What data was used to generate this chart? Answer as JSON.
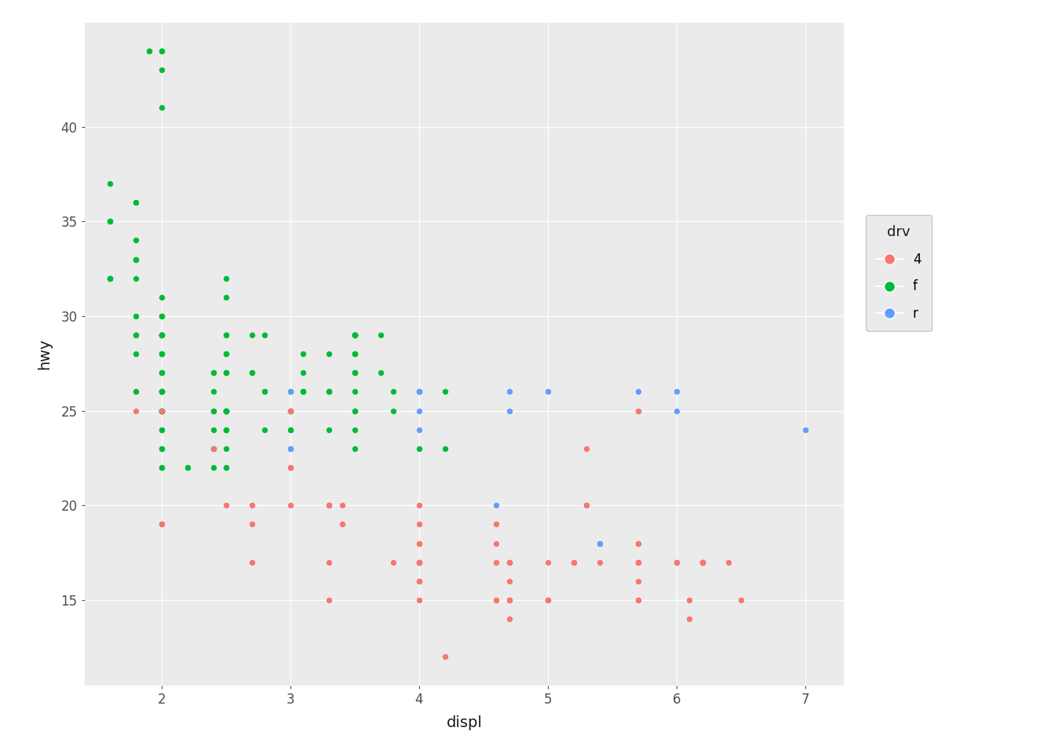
{
  "title": "",
  "xlabel": "displ",
  "ylabel": "hwy",
  "legend_title": "drv",
  "xlim": [
    1.4,
    7.3
  ],
  "ylim": [
    10.5,
    45.5
  ],
  "yticks": [
    15,
    20,
    25,
    30,
    35,
    40
  ],
  "xticks": [
    2,
    3,
    4,
    5,
    6,
    7
  ],
  "background_color": "#EBEBEB",
  "grid_color": "#FFFFFF",
  "colors": {
    "4": "#F8766D",
    "f": "#00BA38",
    "r": "#619CFF"
  },
  "legend_bg": "#EBEBEB",
  "data": [
    {
      "displ": 1.8,
      "hwy": 29,
      "drv": "f"
    },
    {
      "displ": 1.8,
      "hwy": 29,
      "drv": "f"
    },
    {
      "displ": 2.0,
      "hwy": 31,
      "drv": "f"
    },
    {
      "displ": 2.0,
      "hwy": 30,
      "drv": "f"
    },
    {
      "displ": 2.8,
      "hwy": 26,
      "drv": "f"
    },
    {
      "displ": 2.8,
      "hwy": 26,
      "drv": "f"
    },
    {
      "displ": 3.1,
      "hwy": 27,
      "drv": "f"
    },
    {
      "displ": 1.8,
      "hwy": 26,
      "drv": "4"
    },
    {
      "displ": 1.8,
      "hwy": 25,
      "drv": "4"
    },
    {
      "displ": 2.0,
      "hwy": 28,
      "drv": "f"
    },
    {
      "displ": 2.4,
      "hwy": 27,
      "drv": "f"
    },
    {
      "displ": 2.4,
      "hwy": 25,
      "drv": "f"
    },
    {
      "displ": 2.5,
      "hwy": 25,
      "drv": "f"
    },
    {
      "displ": 2.5,
      "hwy": 23,
      "drv": "f"
    },
    {
      "displ": 2.5,
      "hwy": 20,
      "drv": "4"
    },
    {
      "displ": 2.5,
      "hwy": 25,
      "drv": "4"
    },
    {
      "displ": 2.5,
      "hwy": 24,
      "drv": "f"
    },
    {
      "displ": 3.3,
      "hwy": 20,
      "drv": "f"
    },
    {
      "displ": 3.3,
      "hwy": 15,
      "drv": "4"
    },
    {
      "displ": 3.3,
      "hwy": 20,
      "drv": "4"
    },
    {
      "displ": 3.3,
      "hwy": 17,
      "drv": "4"
    },
    {
      "displ": 3.8,
      "hwy": 17,
      "drv": "4"
    },
    {
      "displ": 3.8,
      "hwy": 26,
      "drv": "f"
    },
    {
      "displ": 3.8,
      "hwy": 25,
      "drv": "f"
    },
    {
      "displ": 4.0,
      "hwy": 17,
      "drv": "4"
    },
    {
      "displ": 4.0,
      "hwy": 15,
      "drv": "4"
    },
    {
      "displ": 4.0,
      "hwy": 20,
      "drv": "4"
    },
    {
      "displ": 4.0,
      "hwy": 18,
      "drv": "4"
    },
    {
      "displ": 4.0,
      "hwy": 26,
      "drv": "f"
    },
    {
      "displ": 4.7,
      "hwy": 17,
      "drv": "4"
    },
    {
      "displ": 4.7,
      "hwy": 15,
      "drv": "4"
    },
    {
      "displ": 4.7,
      "hwy": 17,
      "drv": "4"
    },
    {
      "displ": 4.7,
      "hwy": 16,
      "drv": "4"
    },
    {
      "displ": 5.7,
      "hwy": 17,
      "drv": "4"
    },
    {
      "displ": 5.7,
      "hwy": 16,
      "drv": "4"
    },
    {
      "displ": 6.1,
      "hwy": 15,
      "drv": "4"
    },
    {
      "displ": 6.1,
      "hwy": 14,
      "drv": "4"
    },
    {
      "displ": 6.4,
      "hwy": 17,
      "drv": "4"
    },
    {
      "displ": 1.6,
      "hwy": 32,
      "drv": "f"
    },
    {
      "displ": 1.6,
      "hwy": 32,
      "drv": "f"
    },
    {
      "displ": 1.6,
      "hwy": 32,
      "drv": "f"
    },
    {
      "displ": 1.6,
      "hwy": 32,
      "drv": "f"
    },
    {
      "displ": 1.8,
      "hwy": 33,
      "drv": "f"
    },
    {
      "displ": 1.8,
      "hwy": 33,
      "drv": "f"
    },
    {
      "displ": 1.8,
      "hwy": 33,
      "drv": "f"
    },
    {
      "displ": 1.8,
      "hwy": 32,
      "drv": "f"
    },
    {
      "displ": 2.0,
      "hwy": 26,
      "drv": "f"
    },
    {
      "displ": 2.0,
      "hwy": 25,
      "drv": "f"
    },
    {
      "displ": 2.0,
      "hwy": 28,
      "drv": "f"
    },
    {
      "displ": 2.0,
      "hwy": 27,
      "drv": "f"
    },
    {
      "displ": 2.0,
      "hwy": 25,
      "drv": "f"
    },
    {
      "displ": 2.0,
      "hwy": 25,
      "drv": "f"
    },
    {
      "displ": 2.0,
      "hwy": 25,
      "drv": "f"
    },
    {
      "displ": 2.0,
      "hwy": 25,
      "drv": "f"
    },
    {
      "displ": 2.7,
      "hwy": 29,
      "drv": "f"
    },
    {
      "displ": 2.7,
      "hwy": 27,
      "drv": "f"
    },
    {
      "displ": 2.7,
      "hwy": 27,
      "drv": "f"
    },
    {
      "displ": 3.0,
      "hwy": 25,
      "drv": "f"
    },
    {
      "displ": 3.0,
      "hwy": 25,
      "drv": "f"
    },
    {
      "displ": 2.0,
      "hwy": 26,
      "drv": "f"
    },
    {
      "displ": 2.0,
      "hwy": 25,
      "drv": "f"
    },
    {
      "displ": 2.0,
      "hwy": 23,
      "drv": "f"
    },
    {
      "displ": 2.0,
      "hwy": 25,
      "drv": "f"
    },
    {
      "displ": 2.0,
      "hwy": 24,
      "drv": "f"
    },
    {
      "displ": 2.0,
      "hwy": 23,
      "drv": "f"
    },
    {
      "displ": 2.0,
      "hwy": 22,
      "drv": "f"
    },
    {
      "displ": 2.0,
      "hwy": 22,
      "drv": "f"
    },
    {
      "displ": 2.0,
      "hwy": 26,
      "drv": "f"
    },
    {
      "displ": 2.0,
      "hwy": 25,
      "drv": "f"
    },
    {
      "displ": 2.0,
      "hwy": 24,
      "drv": "f"
    },
    {
      "displ": 2.5,
      "hwy": 24,
      "drv": "f"
    },
    {
      "displ": 2.5,
      "hwy": 24,
      "drv": "f"
    },
    {
      "displ": 2.5,
      "hwy": 27,
      "drv": "f"
    },
    {
      "displ": 2.5,
      "hwy": 25,
      "drv": "f"
    },
    {
      "displ": 3.5,
      "hwy": 26,
      "drv": "f"
    },
    {
      "displ": 3.5,
      "hwy": 23,
      "drv": "f"
    },
    {
      "displ": 3.5,
      "hwy": 25,
      "drv": "f"
    },
    {
      "displ": 3.5,
      "hwy": 24,
      "drv": "f"
    },
    {
      "displ": 4.0,
      "hwy": 23,
      "drv": "f"
    },
    {
      "displ": 4.0,
      "hwy": 19,
      "drv": "4"
    },
    {
      "displ": 4.0,
      "hwy": 18,
      "drv": "4"
    },
    {
      "displ": 4.0,
      "hwy": 17,
      "drv": "4"
    },
    {
      "displ": 4.6,
      "hwy": 19,
      "drv": "4"
    },
    {
      "displ": 4.6,
      "hwy": 18,
      "drv": "4"
    },
    {
      "displ": 4.6,
      "hwy": 17,
      "drv": "4"
    },
    {
      "displ": 4.6,
      "hwy": 15,
      "drv": "4"
    },
    {
      "displ": 5.4,
      "hwy": 17,
      "drv": "4"
    },
    {
      "displ": 1.6,
      "hwy": 37,
      "drv": "f"
    },
    {
      "displ": 1.6,
      "hwy": 35,
      "drv": "f"
    },
    {
      "displ": 1.6,
      "hwy": 35,
      "drv": "f"
    },
    {
      "displ": 1.6,
      "hwy": 35,
      "drv": "f"
    },
    {
      "displ": 1.8,
      "hwy": 36,
      "drv": "f"
    },
    {
      "displ": 1.8,
      "hwy": 36,
      "drv": "f"
    },
    {
      "displ": 1.8,
      "hwy": 34,
      "drv": "f"
    },
    {
      "displ": 2.0,
      "hwy": 43,
      "drv": "f"
    },
    {
      "displ": 2.0,
      "hwy": 41,
      "drv": "f"
    },
    {
      "displ": 2.0,
      "hwy": 29,
      "drv": "f"
    },
    {
      "displ": 2.0,
      "hwy": 26,
      "drv": "f"
    },
    {
      "displ": 2.0,
      "hwy": 26,
      "drv": "f"
    },
    {
      "displ": 2.0,
      "hwy": 29,
      "drv": "f"
    },
    {
      "displ": 2.0,
      "hwy": 29,
      "drv": "f"
    },
    {
      "displ": 2.5,
      "hwy": 29,
      "drv": "f"
    },
    {
      "displ": 2.5,
      "hwy": 29,
      "drv": "f"
    },
    {
      "displ": 2.8,
      "hwy": 24,
      "drv": "f"
    },
    {
      "displ": 2.8,
      "hwy": 29,
      "drv": "f"
    },
    {
      "displ": 3.1,
      "hwy": 26,
      "drv": "f"
    },
    {
      "displ": 3.1,
      "hwy": 26,
      "drv": "f"
    },
    {
      "displ": 3.1,
      "hwy": 28,
      "drv": "f"
    },
    {
      "displ": 3.1,
      "hwy": 26,
      "drv": "f"
    },
    {
      "displ": 3.5,
      "hwy": 29,
      "drv": "f"
    },
    {
      "displ": 3.5,
      "hwy": 29,
      "drv": "f"
    },
    {
      "displ": 3.5,
      "hwy": 28,
      "drv": "f"
    },
    {
      "displ": 3.5,
      "hwy": 27,
      "drv": "f"
    },
    {
      "displ": 3.7,
      "hwy": 29,
      "drv": "f"
    },
    {
      "displ": 3.7,
      "hwy": 27,
      "drv": "f"
    },
    {
      "displ": 2.2,
      "hwy": 22,
      "drv": "f"
    },
    {
      "displ": 2.2,
      "hwy": 22,
      "drv": "f"
    },
    {
      "displ": 2.5,
      "hwy": 22,
      "drv": "f"
    },
    {
      "displ": 2.5,
      "hwy": 22,
      "drv": "f"
    },
    {
      "displ": 3.0,
      "hwy": 22,
      "drv": "4"
    },
    {
      "displ": 3.0,
      "hwy": 22,
      "drv": "4"
    },
    {
      "displ": 1.8,
      "hwy": 30,
      "drv": "f"
    },
    {
      "displ": 1.8,
      "hwy": 28,
      "drv": "f"
    },
    {
      "displ": 1.8,
      "hwy": 26,
      "drv": "f"
    },
    {
      "displ": 2.0,
      "hwy": 30,
      "drv": "f"
    },
    {
      "displ": 2.5,
      "hwy": 31,
      "drv": "f"
    },
    {
      "displ": 2.5,
      "hwy": 32,
      "drv": "f"
    },
    {
      "displ": 2.0,
      "hwy": 27,
      "drv": "f"
    },
    {
      "displ": 2.0,
      "hwy": 26,
      "drv": "f"
    },
    {
      "displ": 2.0,
      "hwy": 25,
      "drv": "f"
    },
    {
      "displ": 2.0,
      "hwy": 25,
      "drv": "f"
    },
    {
      "displ": 2.0,
      "hwy": 28,
      "drv": "f"
    },
    {
      "displ": 2.0,
      "hwy": 27,
      "drv": "f"
    },
    {
      "displ": 2.4,
      "hwy": 27,
      "drv": "f"
    },
    {
      "displ": 2.4,
      "hwy": 26,
      "drv": "f"
    },
    {
      "displ": 2.4,
      "hwy": 24,
      "drv": "f"
    },
    {
      "displ": 2.4,
      "hwy": 23,
      "drv": "f"
    },
    {
      "displ": 2.4,
      "hwy": 23,
      "drv": "f"
    },
    {
      "displ": 2.4,
      "hwy": 22,
      "drv": "f"
    },
    {
      "displ": 2.4,
      "hwy": 25,
      "drv": "f"
    },
    {
      "displ": 3.0,
      "hwy": 26,
      "drv": "f"
    },
    {
      "displ": 3.0,
      "hwy": 25,
      "drv": "f"
    },
    {
      "displ": 3.5,
      "hwy": 29,
      "drv": "f"
    },
    {
      "displ": 3.5,
      "hwy": 25,
      "drv": "f"
    },
    {
      "displ": 4.2,
      "hwy": 26,
      "drv": "f"
    },
    {
      "displ": 4.2,
      "hwy": 23,
      "drv": "f"
    },
    {
      "displ": 2.0,
      "hwy": 19,
      "drv": "4"
    },
    {
      "displ": 2.0,
      "hwy": 19,
      "drv": "4"
    },
    {
      "displ": 2.0,
      "hwy": 19,
      "drv": "4"
    },
    {
      "displ": 2.0,
      "hwy": 25,
      "drv": "4"
    },
    {
      "displ": 2.7,
      "hwy": 20,
      "drv": "4"
    },
    {
      "displ": 2.7,
      "hwy": 19,
      "drv": "4"
    },
    {
      "displ": 2.7,
      "hwy": 17,
      "drv": "4"
    },
    {
      "displ": 3.4,
      "hwy": 20,
      "drv": "4"
    },
    {
      "displ": 3.4,
      "hwy": 19,
      "drv": "4"
    },
    {
      "displ": 4.0,
      "hwy": 17,
      "drv": "4"
    },
    {
      "displ": 4.0,
      "hwy": 16,
      "drv": "4"
    },
    {
      "displ": 4.0,
      "hwy": 17,
      "drv": "4"
    },
    {
      "displ": 4.7,
      "hwy": 15,
      "drv": "4"
    },
    {
      "displ": 4.7,
      "hwy": 17,
      "drv": "4"
    },
    {
      "displ": 4.7,
      "hwy": 17,
      "drv": "4"
    },
    {
      "displ": 4.7,
      "hwy": 14,
      "drv": "4"
    },
    {
      "displ": 4.7,
      "hwy": 15,
      "drv": "4"
    },
    {
      "displ": 5.2,
      "hwy": 17,
      "drv": "4"
    },
    {
      "displ": 5.2,
      "hwy": 17,
      "drv": "4"
    },
    {
      "displ": 5.7,
      "hwy": 18,
      "drv": "4"
    },
    {
      "displ": 5.7,
      "hwy": 18,
      "drv": "4"
    },
    {
      "displ": 5.7,
      "hwy": 17,
      "drv": "4"
    },
    {
      "displ": 5.7,
      "hwy": 15,
      "drv": "4"
    },
    {
      "displ": 6.5,
      "hwy": 15,
      "drv": "4"
    },
    {
      "displ": 2.4,
      "hwy": 23,
      "drv": "4"
    },
    {
      "displ": 3.0,
      "hwy": 25,
      "drv": "4"
    },
    {
      "displ": 3.0,
      "hwy": 25,
      "drv": "4"
    },
    {
      "displ": 3.0,
      "hwy": 20,
      "drv": "4"
    },
    {
      "displ": 3.0,
      "hwy": 23,
      "drv": "r"
    },
    {
      "displ": 3.0,
      "hwy": 26,
      "drv": "r"
    },
    {
      "displ": 3.0,
      "hwy": 23,
      "drv": "r"
    },
    {
      "displ": 4.0,
      "hwy": 26,
      "drv": "r"
    },
    {
      "displ": 4.0,
      "hwy": 26,
      "drv": "r"
    },
    {
      "displ": 4.0,
      "hwy": 25,
      "drv": "r"
    },
    {
      "displ": 4.0,
      "hwy": 24,
      "drv": "r"
    },
    {
      "displ": 4.7,
      "hwy": 26,
      "drv": "r"
    },
    {
      "displ": 4.7,
      "hwy": 25,
      "drv": "r"
    },
    {
      "displ": 5.0,
      "hwy": 26,
      "drv": "r"
    },
    {
      "displ": 5.7,
      "hwy": 26,
      "drv": "r"
    },
    {
      "displ": 5.7,
      "hwy": 25,
      "drv": "r"
    },
    {
      "displ": 6.0,
      "hwy": 26,
      "drv": "r"
    },
    {
      "displ": 6.0,
      "hwy": 25,
      "drv": "r"
    },
    {
      "displ": 7.0,
      "hwy": 24,
      "drv": "r"
    },
    {
      "displ": 5.3,
      "hwy": 23,
      "drv": "4"
    },
    {
      "displ": 5.3,
      "hwy": 20,
      "drv": "4"
    },
    {
      "displ": 5.3,
      "hwy": 20,
      "drv": "4"
    },
    {
      "displ": 5.7,
      "hwy": 25,
      "drv": "4"
    },
    {
      "displ": 6.0,
      "hwy": 17,
      "drv": "r"
    },
    {
      "displ": 6.0,
      "hwy": 17,
      "drv": "4"
    },
    {
      "displ": 6.0,
      "hwy": 17,
      "drv": "4"
    },
    {
      "displ": 6.2,
      "hwy": 17,
      "drv": "r"
    },
    {
      "displ": 6.2,
      "hwy": 17,
      "drv": "4"
    },
    {
      "displ": 6.2,
      "hwy": 17,
      "drv": "4"
    },
    {
      "displ": 4.6,
      "hwy": 20,
      "drv": "r"
    },
    {
      "displ": 5.4,
      "hwy": 18,
      "drv": "r"
    },
    {
      "displ": 5.4,
      "hwy": 18,
      "drv": "r"
    },
    {
      "displ": 4.0,
      "hwy": 17,
      "drv": "4"
    },
    {
      "displ": 4.0,
      "hwy": 16,
      "drv": "4"
    },
    {
      "displ": 4.6,
      "hwy": 15,
      "drv": "4"
    },
    {
      "displ": 5.0,
      "hwy": 17,
      "drv": "4"
    },
    {
      "displ": 4.2,
      "hwy": 12,
      "drv": "4"
    },
    {
      "displ": 5.0,
      "hwy": 15,
      "drv": "4"
    },
    {
      "displ": 5.0,
      "hwy": 15,
      "drv": "4"
    },
    {
      "displ": 5.0,
      "hwy": 15,
      "drv": "4"
    },
    {
      "displ": 5.7,
      "hwy": 15,
      "drv": "4"
    },
    {
      "displ": 5.7,
      "hwy": 17,
      "drv": "4"
    },
    {
      "displ": 6.2,
      "hwy": 17,
      "drv": "4"
    },
    {
      "displ": 6.2,
      "hwy": 17,
      "drv": "4"
    },
    {
      "displ": 6.2,
      "hwy": 17,
      "drv": "4"
    },
    {
      "displ": 1.9,
      "hwy": 44,
      "drv": "f"
    },
    {
      "displ": 1.9,
      "hwy": 44,
      "drv": "f"
    },
    {
      "displ": 2.0,
      "hwy": 44,
      "drv": "f"
    },
    {
      "displ": 2.0,
      "hwy": 44,
      "drv": "f"
    },
    {
      "displ": 2.0,
      "hwy": 29,
      "drv": "f"
    },
    {
      "displ": 2.0,
      "hwy": 26,
      "drv": "f"
    },
    {
      "displ": 2.0,
      "hwy": 29,
      "drv": "f"
    },
    {
      "displ": 2.0,
      "hwy": 29,
      "drv": "f"
    },
    {
      "displ": 2.0,
      "hwy": 29,
      "drv": "f"
    },
    {
      "displ": 2.5,
      "hwy": 28,
      "drv": "f"
    },
    {
      "displ": 2.5,
      "hwy": 28,
      "drv": "f"
    },
    {
      "displ": 2.5,
      "hwy": 25,
      "drv": "f"
    },
    {
      "displ": 2.5,
      "hwy": 25,
      "drv": "f"
    },
    {
      "displ": 2.5,
      "hwy": 25,
      "drv": "f"
    },
    {
      "displ": 2.5,
      "hwy": 25,
      "drv": "f"
    },
    {
      "displ": 2.5,
      "hwy": 25,
      "drv": "f"
    },
    {
      "displ": 2.5,
      "hwy": 25,
      "drv": "f"
    },
    {
      "displ": 2.5,
      "hwy": 25,
      "drv": "f"
    },
    {
      "displ": 2.5,
      "hwy": 27,
      "drv": "f"
    },
    {
      "displ": 2.5,
      "hwy": 27,
      "drv": "f"
    },
    {
      "displ": 3.0,
      "hwy": 24,
      "drv": "f"
    },
    {
      "displ": 3.0,
      "hwy": 24,
      "drv": "f"
    },
    {
      "displ": 3.3,
      "hwy": 24,
      "drv": "f"
    },
    {
      "displ": 3.3,
      "hwy": 26,
      "drv": "f"
    },
    {
      "displ": 3.3,
      "hwy": 26,
      "drv": "f"
    },
    {
      "displ": 3.3,
      "hwy": 26,
      "drv": "f"
    },
    {
      "displ": 3.3,
      "hwy": 28,
      "drv": "f"
    },
    {
      "displ": 3.3,
      "hwy": 26,
      "drv": "f"
    },
    {
      "displ": 3.5,
      "hwy": 29,
      "drv": "f"
    },
    {
      "displ": 3.5,
      "hwy": 29,
      "drv": "f"
    },
    {
      "displ": 3.5,
      "hwy": 28,
      "drv": "f"
    },
    {
      "displ": 3.5,
      "hwy": 27,
      "drv": "f"
    },
    {
      "displ": 3.5,
      "hwy": 29,
      "drv": "f"
    },
    {
      "displ": 3.5,
      "hwy": 29,
      "drv": "f"
    },
    {
      "displ": 3.5,
      "hwy": 28,
      "drv": "f"
    },
    {
      "displ": 3.5,
      "hwy": 27,
      "drv": "f"
    },
    {
      "displ": 3.5,
      "hwy": 29,
      "drv": "f"
    },
    {
      "displ": 3.5,
      "hwy": 29,
      "drv": "f"
    }
  ]
}
